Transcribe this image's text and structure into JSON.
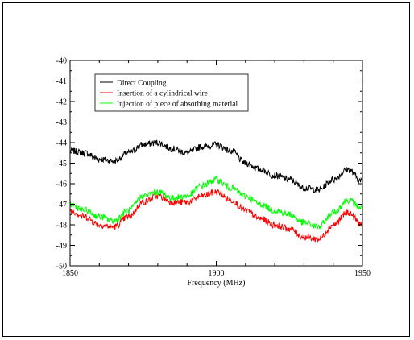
{
  "chart_data": {
    "type": "line",
    "title": "",
    "xlabel": "Frequency (MHz)",
    "ylabel": "",
    "xlim": [
      1850,
      1950
    ],
    "ylim": [
      -50,
      -40
    ],
    "x_ticks": [
      1850,
      1900,
      1950
    ],
    "y_ticks": [
      -40,
      -41,
      -42,
      -43,
      -44,
      -45,
      -46,
      -47,
      -48,
      -49,
      -50
    ],
    "grid": false,
    "legend_position": "top-left",
    "x": [
      1850,
      1855,
      1860,
      1865,
      1870,
      1875,
      1880,
      1885,
      1890,
      1895,
      1900,
      1905,
      1910,
      1915,
      1920,
      1925,
      1930,
      1935,
      1940,
      1945,
      1950
    ],
    "series": [
      {
        "name": "Direct Coupling",
        "color": "#000000",
        "values": [
          -44.4,
          -44.5,
          -44.8,
          -44.9,
          -44.5,
          -44.1,
          -44.0,
          -44.3,
          -44.5,
          -44.2,
          -44.1,
          -44.4,
          -45.0,
          -45.3,
          -45.6,
          -45.8,
          -46.2,
          -46.3,
          -45.8,
          -45.3,
          -45.9
        ]
      },
      {
        "name": "Insertion of a cylindrical wire",
        "color": "#ff0000",
        "values": [
          -47.3,
          -47.6,
          -48.0,
          -48.1,
          -47.6,
          -46.9,
          -46.6,
          -46.9,
          -46.9,
          -46.6,
          -46.4,
          -46.8,
          -47.3,
          -47.7,
          -48.0,
          -48.2,
          -48.6,
          -48.7,
          -48.0,
          -47.4,
          -48.0
        ]
      },
      {
        "name": "Injection of piece of absorbing material",
        "color": "#00ff00",
        "values": [
          -47.0,
          -47.3,
          -47.6,
          -47.8,
          -47.3,
          -46.6,
          -46.4,
          -46.7,
          -46.6,
          -46.1,
          -45.8,
          -46.2,
          -46.6,
          -47.0,
          -47.3,
          -47.5,
          -47.9,
          -48.1,
          -47.4,
          -46.8,
          -47.2
        ]
      }
    ]
  }
}
